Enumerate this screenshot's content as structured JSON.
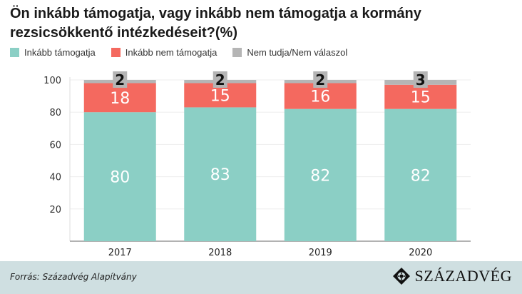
{
  "chart_data": {
    "type": "bar",
    "stacked": true,
    "title": "Ön inkább támogatja, vagy inkább nem támogatja a kormány rezsicsökkentő intézkedéseit?(%)",
    "categories": [
      "2017",
      "2018",
      "2019",
      "2020"
    ],
    "series": [
      {
        "name": "Inkább támogatja",
        "color": "#8bcfc5",
        "values": [
          80,
          83,
          82,
          82
        ]
      },
      {
        "name": "Inkább nem támogatja",
        "color": "#f4695f",
        "values": [
          18,
          15,
          16,
          15
        ]
      },
      {
        "name": "Nem tudja/Nem válaszol",
        "color": "#b5b5b5",
        "values": [
          2,
          2,
          2,
          3
        ]
      }
    ],
    "ylim": [
      0,
      100
    ],
    "yticks": [
      "20",
      "40",
      "60",
      "80",
      "100"
    ],
    "xlabel": "",
    "ylabel": "",
    "grid": true,
    "legend": "top-left"
  },
  "footer": {
    "source": "Forrás: Századvég Alapítvány",
    "logo_text": "SZÁZADVÉG"
  }
}
